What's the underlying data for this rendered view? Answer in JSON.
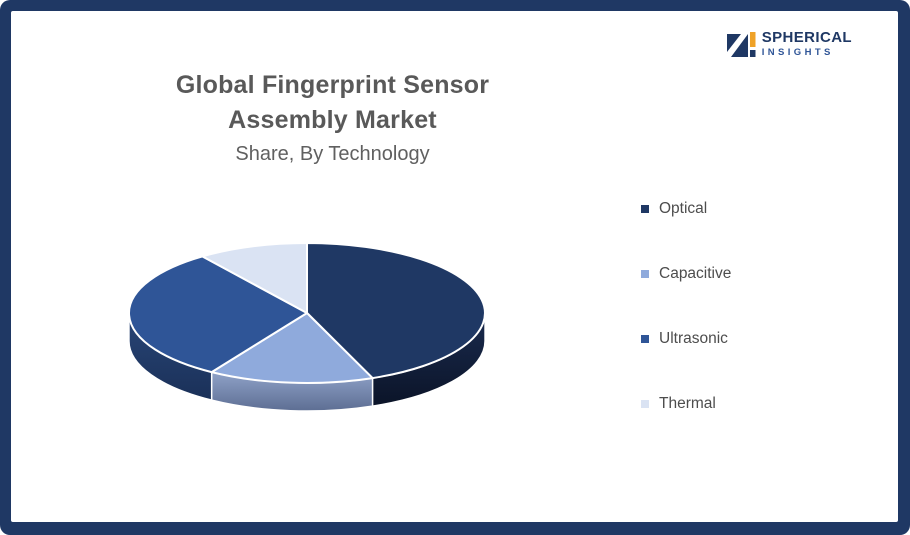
{
  "frame": {
    "border_color": "#1F3864",
    "background": "#FFFFFF"
  },
  "header": {
    "title_line1": "Global Fingerprint Sensor",
    "title_line2": "Assembly Market",
    "subtitle": "Share, By Technology"
  },
  "logo": {
    "text_primary": "SPHERICAL",
    "text_secondary": "INSIGHTS",
    "navy": "#1F3864",
    "blue": "#2F5597",
    "orange": "#EFA228"
  },
  "chart_data": {
    "type": "pie",
    "style": "3d",
    "title": "Global Fingerprint Sensor Assembly Market Share, By Technology",
    "categories": [
      "Optical",
      "Capacitive",
      "Ultrasonic",
      "Thermal"
    ],
    "values": [
      44,
      15,
      31,
      10
    ],
    "unit": "%",
    "values_estimated": true,
    "data_labels": false,
    "start_angle_deg": 0,
    "direction": "clockwise",
    "colors": [
      "#1F3864",
      "#8FAADC",
      "#2F5597",
      "#DAE3F3"
    ],
    "side_colors": [
      [
        "#1A2B4F",
        "#0B1428"
      ],
      [
        "#8FA2C8",
        "#5D6E93"
      ],
      [
        "#294677",
        "#1A3058"
      ],
      [
        "#C9D6EB",
        "#9FB1CE"
      ]
    ],
    "legend_position": "right"
  }
}
